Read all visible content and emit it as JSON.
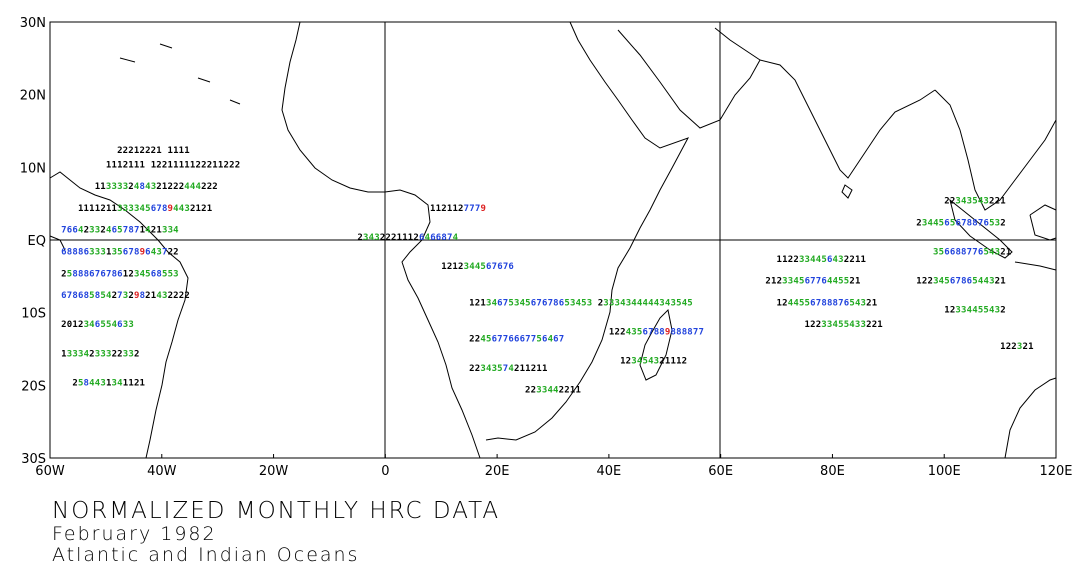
{
  "title": "NORMALIZED MONTHLY HRC DATA",
  "subtitle_month": "February 1982",
  "subtitle_region": "Atlantic and Indian Oceans",
  "map": {
    "lon_range": [
      -60,
      120
    ],
    "lat_range": [
      -30,
      30
    ],
    "x_ticks": [
      "60W",
      "40W",
      "20W",
      "0",
      "20E",
      "40E",
      "60E",
      "80E",
      "100E",
      "120E"
    ],
    "y_ticks": [
      "30N",
      "20N",
      "10N",
      "EQ",
      "10S",
      "20S",
      "30S"
    ],
    "reference_lines": {
      "equator": true,
      "prime_meridian": true,
      "lon_60E": true
    },
    "colors": {
      "low": "#000000",
      "mid": "#22aa22",
      "high": "#2244dd",
      "peak": "#dd2222",
      "coast": "#000000"
    },
    "value_scale": "digits 1-9 and letters; low=black, medium=green, high=blue, peak=red"
  },
  "chart_data": {
    "type": "heatmap",
    "title": "NORMALIZED MONTHLY HRC DATA",
    "period": "February 1982",
    "region": "Atlantic and Indian Oceans",
    "x_range": [
      -60,
      120
    ],
    "y_range": [
      -30,
      30
    ],
    "sample_rows": [
      {
        "lat": 12,
        "lon_start": -48,
        "codes": "22212221 1111"
      },
      {
        "lat": 10,
        "lon_start": -50,
        "codes": "1112111 1221111122211222"
      },
      {
        "lat": 7,
        "lon_start": -52,
        "codes": "1133332484321222444222"
      },
      {
        "lat": 4,
        "lon_start": -55,
        "codes": "111121133334567894432121"
      },
      {
        "lat": 1,
        "lon_start": -58,
        "codes": "766423324657871421334"
      },
      {
        "lat": -2,
        "lon_start": -58,
        "codes": "688863331356789643722"
      },
      {
        "lat": -5,
        "lon_start": -58,
        "codes": "258886767861234568553"
      },
      {
        "lat": -8,
        "lon_start": -58,
        "codes": "67868585427329821432222"
      },
      {
        "lat": -12,
        "lon_start": -58,
        "codes": "2012346554633"
      },
      {
        "lat": -16,
        "lon_start": -58,
        "codes": "13334233322332"
      },
      {
        "lat": -20,
        "lon_start": -56,
        "codes": "2584431341121"
      },
      {
        "lat": 4,
        "lon_start": 8,
        "codes": "1121127779"
      },
      {
        "lat": 0,
        "lon_start": -5,
        "codes": "234322211126466874"
      },
      {
        "lat": -4,
        "lon_start": 10,
        "codes": "1212344567676"
      },
      {
        "lat": -9,
        "lon_start": 15,
        "codes": "1213467534567678653453"
      },
      {
        "lat": -14,
        "lon_start": 15,
        "codes": "22456776667756467"
      },
      {
        "lat": -18,
        "lon_start": 15,
        "codes": "22343574211211"
      },
      {
        "lat": -21,
        "lon_start": 25,
        "codes": "2233442211"
      },
      {
        "lat": -9,
        "lon_start": 38,
        "codes": "23334344444343545"
      },
      {
        "lat": -13,
        "lon_start": 40,
        "codes": "12243567889888877"
      },
      {
        "lat": -17,
        "lon_start": 42,
        "codes": "123454321112"
      },
      {
        "lat": -3,
        "lon_start": 70,
        "codes": "1122334456432211"
      },
      {
        "lat": -6,
        "lon_start": 68,
        "codes": "21233456776445521"
      },
      {
        "lat": -9,
        "lon_start": 70,
        "codes": "124455678887654321"
      },
      {
        "lat": -12,
        "lon_start": 75,
        "codes": "12233455433221"
      },
      {
        "lat": 2,
        "lon_start": 95,
        "codes": "2344565678876532"
      },
      {
        "lat": -2,
        "lon_start": 98,
        "codes": "35668877654321"
      },
      {
        "lat": -6,
        "lon_start": 95,
        "codes": "1223456786544321"
      },
      {
        "lat": 5,
        "lon_start": 100,
        "codes": "22343543221"
      },
      {
        "lat": -10,
        "lon_start": 100,
        "codes": "12334455432"
      },
      {
        "lat": -15,
        "lon_start": 110,
        "codes": "122321"
      }
    ]
  }
}
